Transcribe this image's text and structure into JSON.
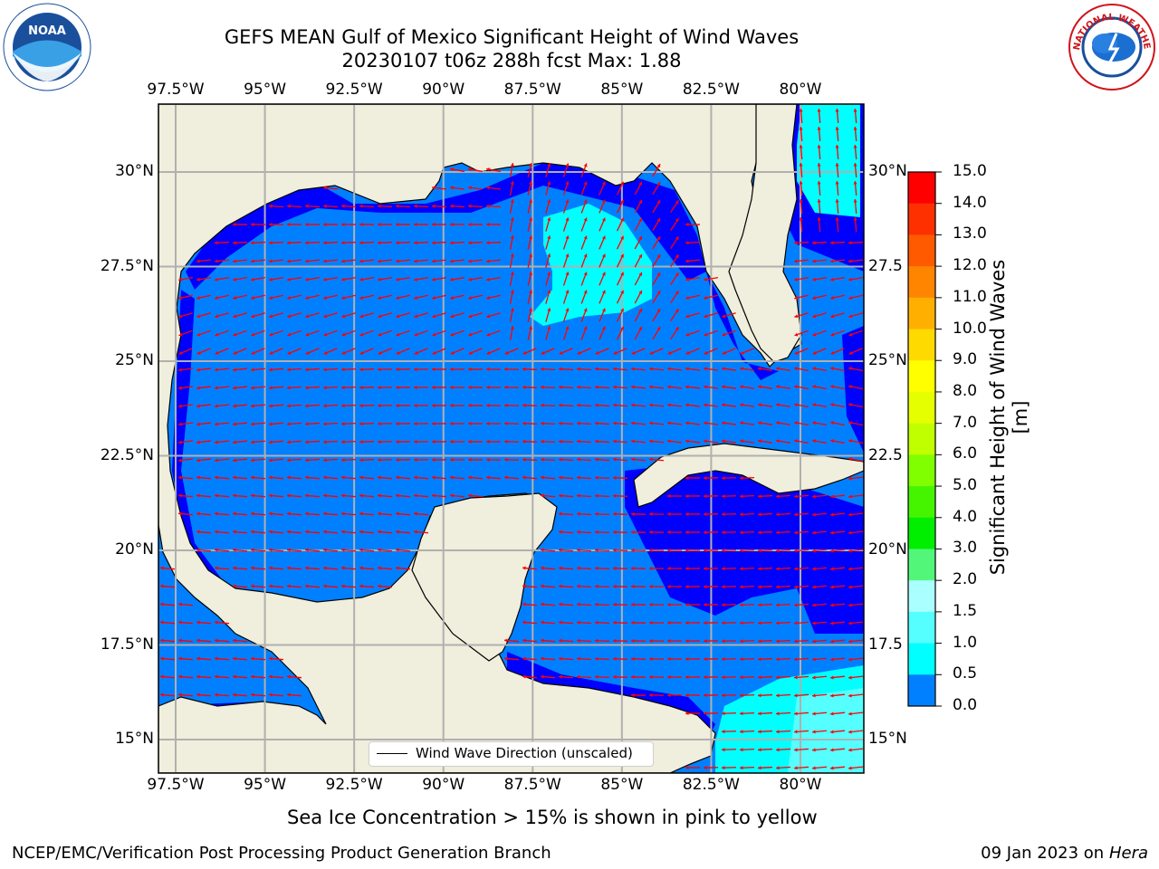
{
  "title": {
    "line1": "GEFS MEAN Gulf of Mexico Significant Height of Wind Waves",
    "line2": "20230107 t06z 288h fcst   Max: 1.88"
  },
  "map": {
    "lon_labels": [
      "97.5°W",
      "95°W",
      "92.5°W",
      "90°W",
      "87.5°W",
      "85°W",
      "82.5°W",
      "80°W"
    ],
    "lat_labels": [
      "30°N",
      "27.5°N",
      "25°N",
      "22.5°N",
      "20°N",
      "17.5°N",
      "15°N"
    ],
    "lat_labels_right": [
      "30°N",
      "27.5",
      "25°N",
      "22.5",
      "20°N",
      "17.5",
      "15°N"
    ],
    "legend_text": "Wind Wave Direction (unscaled)",
    "land_color": "#f0eedc",
    "water_color": "#0080ff"
  },
  "colorbar": {
    "ticks": [
      "15.0",
      "14.0",
      "13.0",
      "12.0",
      "11.0",
      "10.0",
      "9.0",
      "8.0",
      "7.0",
      "6.0",
      "5.0",
      "4.0",
      "3.0",
      "2.0",
      "1.5",
      "1.0",
      "0.5",
      "0.0"
    ],
    "colors": [
      "#ff0000",
      "#ff3000",
      "#ff5a00",
      "#ff8500",
      "#ffaf00",
      "#ffda00",
      "#ffff00",
      "#e6ff00",
      "#bfff00",
      "#80ff00",
      "#45f500",
      "#00ee00",
      "#52f77a",
      "#aaffff",
      "#55ffff",
      "#00ffff",
      "#0080ff",
      "#0000ff"
    ],
    "label": "Significant Height of Wind Waves [m]"
  },
  "note": "Sea Ice Concentration > 15% is shown in pink to yellow",
  "footer": {
    "left": "NCEP/EMC/Verification Post Processing Product Generation Branch",
    "date": "09 Jan 2023 on",
    "host": "Hera"
  },
  "logos": {
    "noaa_text": "NOAA",
    "nws_text": "NATIONAL WEATHER SERVICE"
  }
}
